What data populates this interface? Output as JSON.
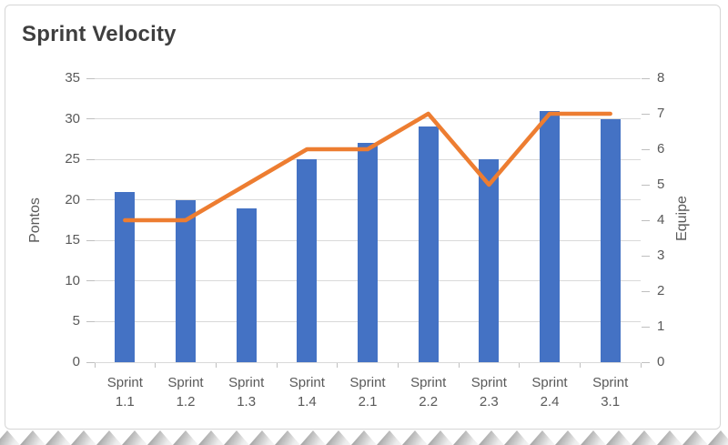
{
  "chart_data": {
    "type": "combo-bar-line",
    "title": "Sprint Velocity",
    "categories": [
      "Sprint 1.1",
      "Sprint 1.2",
      "Sprint 1.3",
      "Sprint 1.4",
      "Sprint 2.1",
      "Sprint 2.2",
      "Sprint 2.3",
      "Sprint 2.4",
      "Sprint 3.1"
    ],
    "series": [
      {
        "name": "Pontos",
        "type": "bar",
        "axis": "left",
        "color": "#4472c4",
        "values": [
          21,
          20,
          19,
          25,
          27,
          29,
          25,
          31,
          30
        ]
      },
      {
        "name": "Equipe",
        "type": "line",
        "axis": "right",
        "color": "#ed7d31",
        "values": [
          4,
          4,
          5,
          6,
          6,
          7,
          5,
          7,
          7
        ]
      }
    ],
    "ylabel_left": "Pontos",
    "ylabel_right": "Equipe",
    "ylim_left": [
      0,
      35
    ],
    "yticks_left": [
      0,
      5,
      10,
      15,
      20,
      25,
      30,
      35
    ],
    "ylim_right": [
      0,
      8
    ],
    "yticks_right": [
      0,
      1,
      2,
      3,
      4,
      5,
      6,
      7,
      8
    ],
    "grid": true,
    "legend": "none",
    "colors": {
      "gridline": "#d9d9d9",
      "tick": "#bfbfbf",
      "axis_text": "#595959",
      "title_text": "#3f3f3f",
      "frame_border": "#d6d6d6",
      "torn_edge_dark": "#878787",
      "torn_edge_light": "#f5f5f5"
    }
  }
}
